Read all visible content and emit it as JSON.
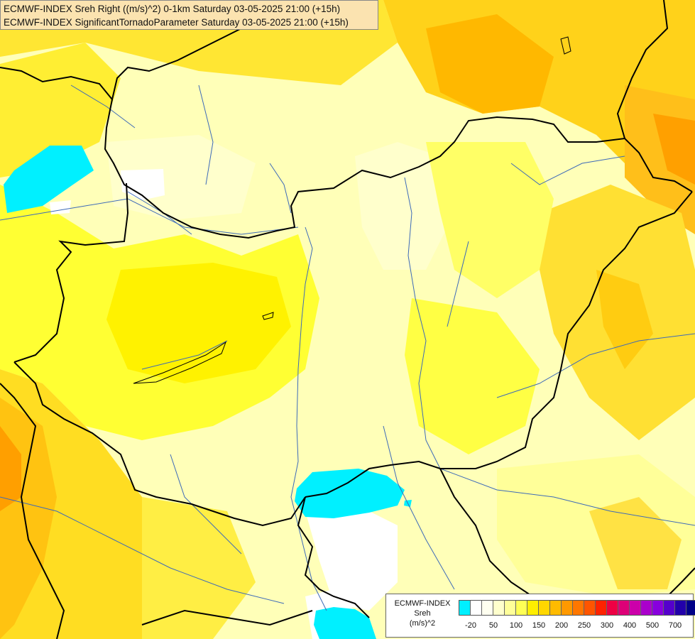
{
  "title": {
    "line1": "ECMWF-INDEX Sreh Right ((m/s)^2) 0-1km Saturday 03-05-2025 21:00 (+15h)",
    "line2": "ECMWF-INDEX SignificantTornadoParameter Saturday 03-05-2025 21:00 (+15h)"
  },
  "legend": {
    "source": "ECMWF-INDEX",
    "variable": "Sreh",
    "unit": "(m/s)^2",
    "colors": [
      "#00f0ff",
      "#ffffff",
      "#fffff0",
      "#ffffcc",
      "#ffff99",
      "#ffff55",
      "#ffee00",
      "#ffd700",
      "#ffbb00",
      "#ff9900",
      "#ff7700",
      "#ff5500",
      "#ff2200",
      "#ee0044",
      "#dd0077",
      "#cc00aa",
      "#aa00cc",
      "#8800dd",
      "#5500cc",
      "#2200aa",
      "#000088"
    ],
    "tick_labels": [
      "-20",
      "50",
      "100",
      "150",
      "200",
      "250",
      "300",
      "400",
      "500",
      "700"
    ]
  },
  "palette": {
    "light_cream": "#ffffc0",
    "pale_yellow": "#ffff90",
    "yellow": "#ffff33",
    "gold": "#ffdd00",
    "amber": "#ffbb00",
    "orange": "#ff9900",
    "negative_cyan": "#00f0ff",
    "border_black": "#000000",
    "river_blue": "#3d6ab8"
  }
}
